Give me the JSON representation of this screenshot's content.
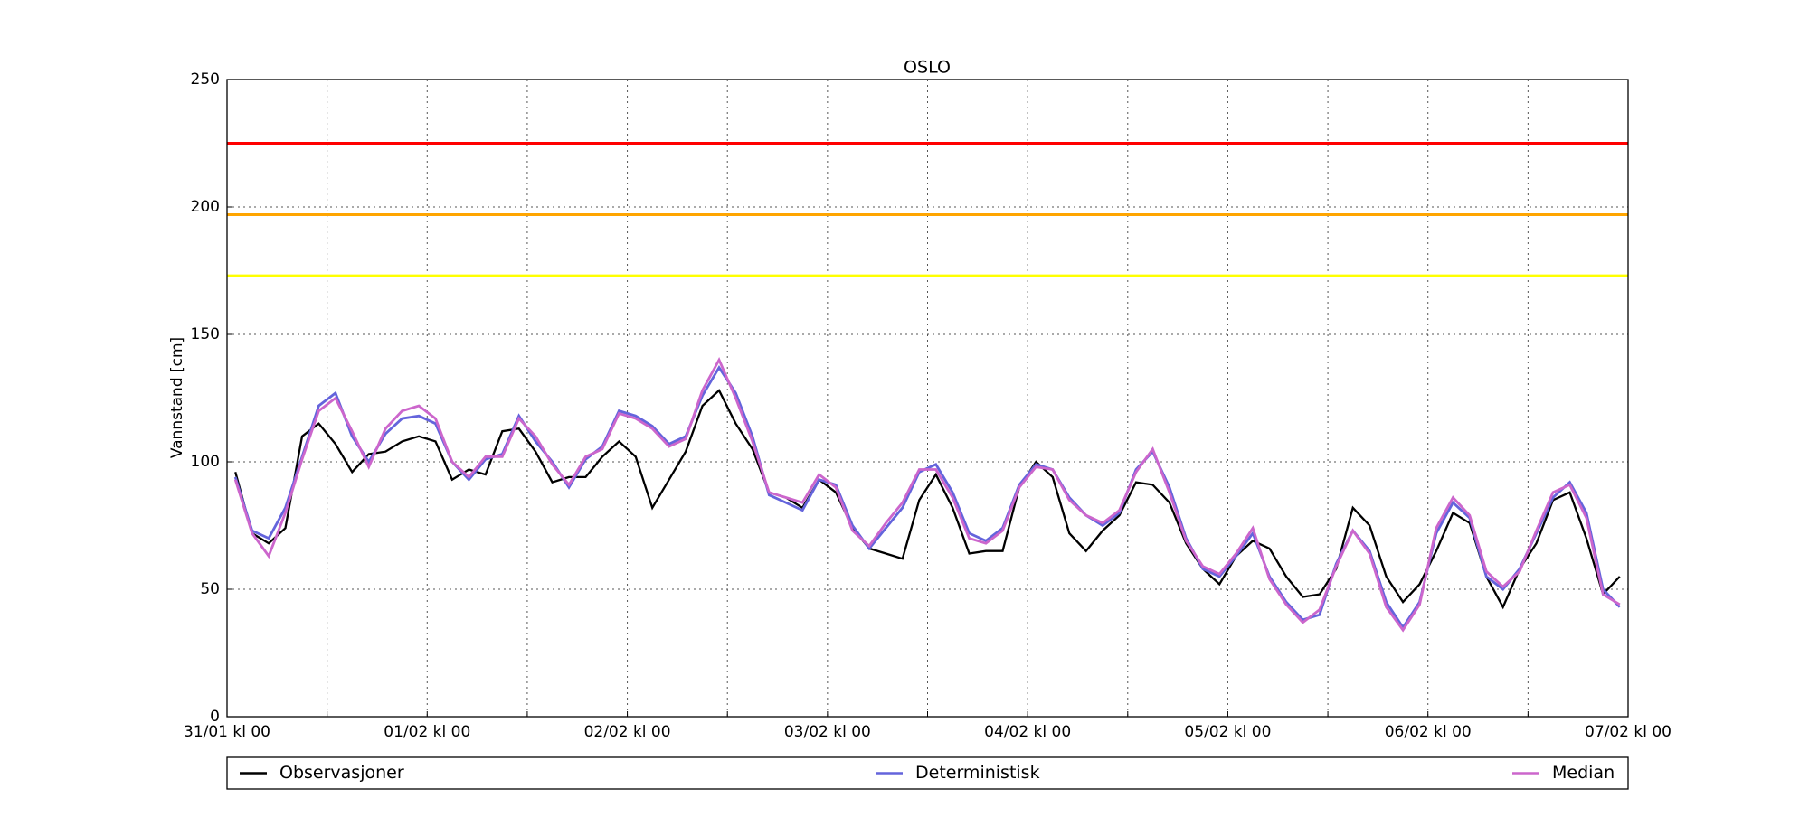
{
  "chart_data": {
    "type": "line",
    "title": "OSLO",
    "y_label": "Vannstand [cm]",
    "x": [
      1,
      3,
      5,
      7,
      9,
      11,
      13,
      15,
      17,
      19,
      21,
      23,
      25,
      27,
      29,
      31,
      33,
      35,
      37,
      39,
      41,
      43,
      45,
      47,
      49,
      51,
      53,
      55,
      57,
      59,
      61,
      63,
      65,
      67,
      69,
      71,
      73,
      75,
      77,
      79,
      81,
      83,
      85,
      87,
      89,
      91,
      93,
      95,
      97,
      99,
      101,
      103,
      105,
      107,
      109,
      111,
      113,
      115,
      117,
      119,
      121,
      123,
      125,
      127,
      129,
      131,
      133,
      135,
      137,
      139,
      141,
      143,
      145,
      147,
      149,
      151,
      153,
      155,
      157,
      159,
      161,
      163,
      165,
      167
    ],
    "series": [
      {
        "name": "Observasjoner",
        "color": "#000000",
        "values": [
          96,
          72,
          68,
          74,
          110,
          115,
          107,
          96,
          103,
          104,
          108,
          110,
          108,
          93,
          97,
          95,
          112,
          113,
          104,
          92,
          94,
          94,
          102,
          108,
          102,
          82,
          93,
          104,
          122,
          128,
          115,
          105,
          88,
          86,
          82,
          93,
          88,
          74,
          66,
          64,
          62,
          85,
          95,
          82,
          64,
          65,
          65,
          90,
          100,
          94,
          72,
          65,
          73,
          79,
          92,
          91,
          84,
          68,
          58,
          52,
          63,
          69,
          66,
          55,
          47,
          48,
          58,
          82,
          75,
          55,
          45,
          52,
          65,
          80,
          76,
          55,
          43,
          58,
          68,
          85,
          88,
          70,
          48,
          55
        ]
      },
      {
        "name": "Deterministisk",
        "color": "#6464dc",
        "values": [
          94,
          73,
          70,
          82,
          102,
          122,
          127,
          110,
          100,
          111,
          117,
          118,
          115,
          100,
          93,
          101,
          103,
          118,
          108,
          100,
          90,
          101,
          106,
          120,
          118,
          114,
          107,
          110,
          126,
          137,
          127,
          110,
          87,
          84,
          81,
          93,
          91,
          75,
          66,
          74,
          82,
          96,
          99,
          88,
          72,
          69,
          74,
          91,
          99,
          97,
          86,
          79,
          75,
          80,
          97,
          104,
          90,
          70,
          58,
          55,
          63,
          72,
          55,
          45,
          38,
          40,
          60,
          73,
          65,
          45,
          35,
          45,
          72,
          84,
          78,
          55,
          50,
          58,
          72,
          86,
          92,
          80,
          50,
          43
        ]
      },
      {
        "name": "Median",
        "color": "#cc66cc",
        "values": [
          93,
          72,
          63,
          80,
          101,
          120,
          125,
          112,
          98,
          113,
          120,
          122,
          117,
          100,
          94,
          102,
          102,
          117,
          110,
          99,
          91,
          102,
          105,
          119,
          117,
          113,
          106,
          109,
          128,
          140,
          125,
          108,
          88,
          86,
          84,
          95,
          90,
          73,
          67,
          76,
          84,
          97,
          97,
          86,
          70,
          68,
          73,
          90,
          98,
          97,
          85,
          79,
          76,
          81,
          96,
          105,
          88,
          69,
          59,
          56,
          64,
          74,
          54,
          44,
          37,
          42,
          59,
          73,
          64,
          43,
          34,
          44,
          74,
          86,
          79,
          57,
          51,
          57,
          73,
          88,
          91,
          78,
          48,
          44
        ]
      }
    ],
    "hlines": [
      {
        "value": 225,
        "color": "#ff0000"
      },
      {
        "value": 197,
        "color": "#ffa500"
      },
      {
        "value": 173,
        "color": "#ffff00"
      }
    ],
    "xlim": [
      0,
      168
    ],
    "ylim": [
      0,
      250
    ],
    "yticks": [
      0,
      50,
      100,
      150,
      200,
      250
    ],
    "xticks": [
      {
        "value": 0,
        "label": "31/01 kl 00"
      },
      {
        "value": 24,
        "label": "01/02 kl 00"
      },
      {
        "value": 48,
        "label": "02/02 kl 00"
      },
      {
        "value": 72,
        "label": "03/02 kl 00"
      },
      {
        "value": 96,
        "label": "04/02 kl 00"
      },
      {
        "value": 120,
        "label": "05/02 kl 00"
      },
      {
        "value": 144,
        "label": "06/02 kl 00"
      },
      {
        "value": 168,
        "label": "07/02 kl 00"
      }
    ],
    "xminorticks": [
      12,
      36,
      60,
      84,
      108,
      132,
      156
    ],
    "grid": true,
    "legend": "bottom"
  }
}
